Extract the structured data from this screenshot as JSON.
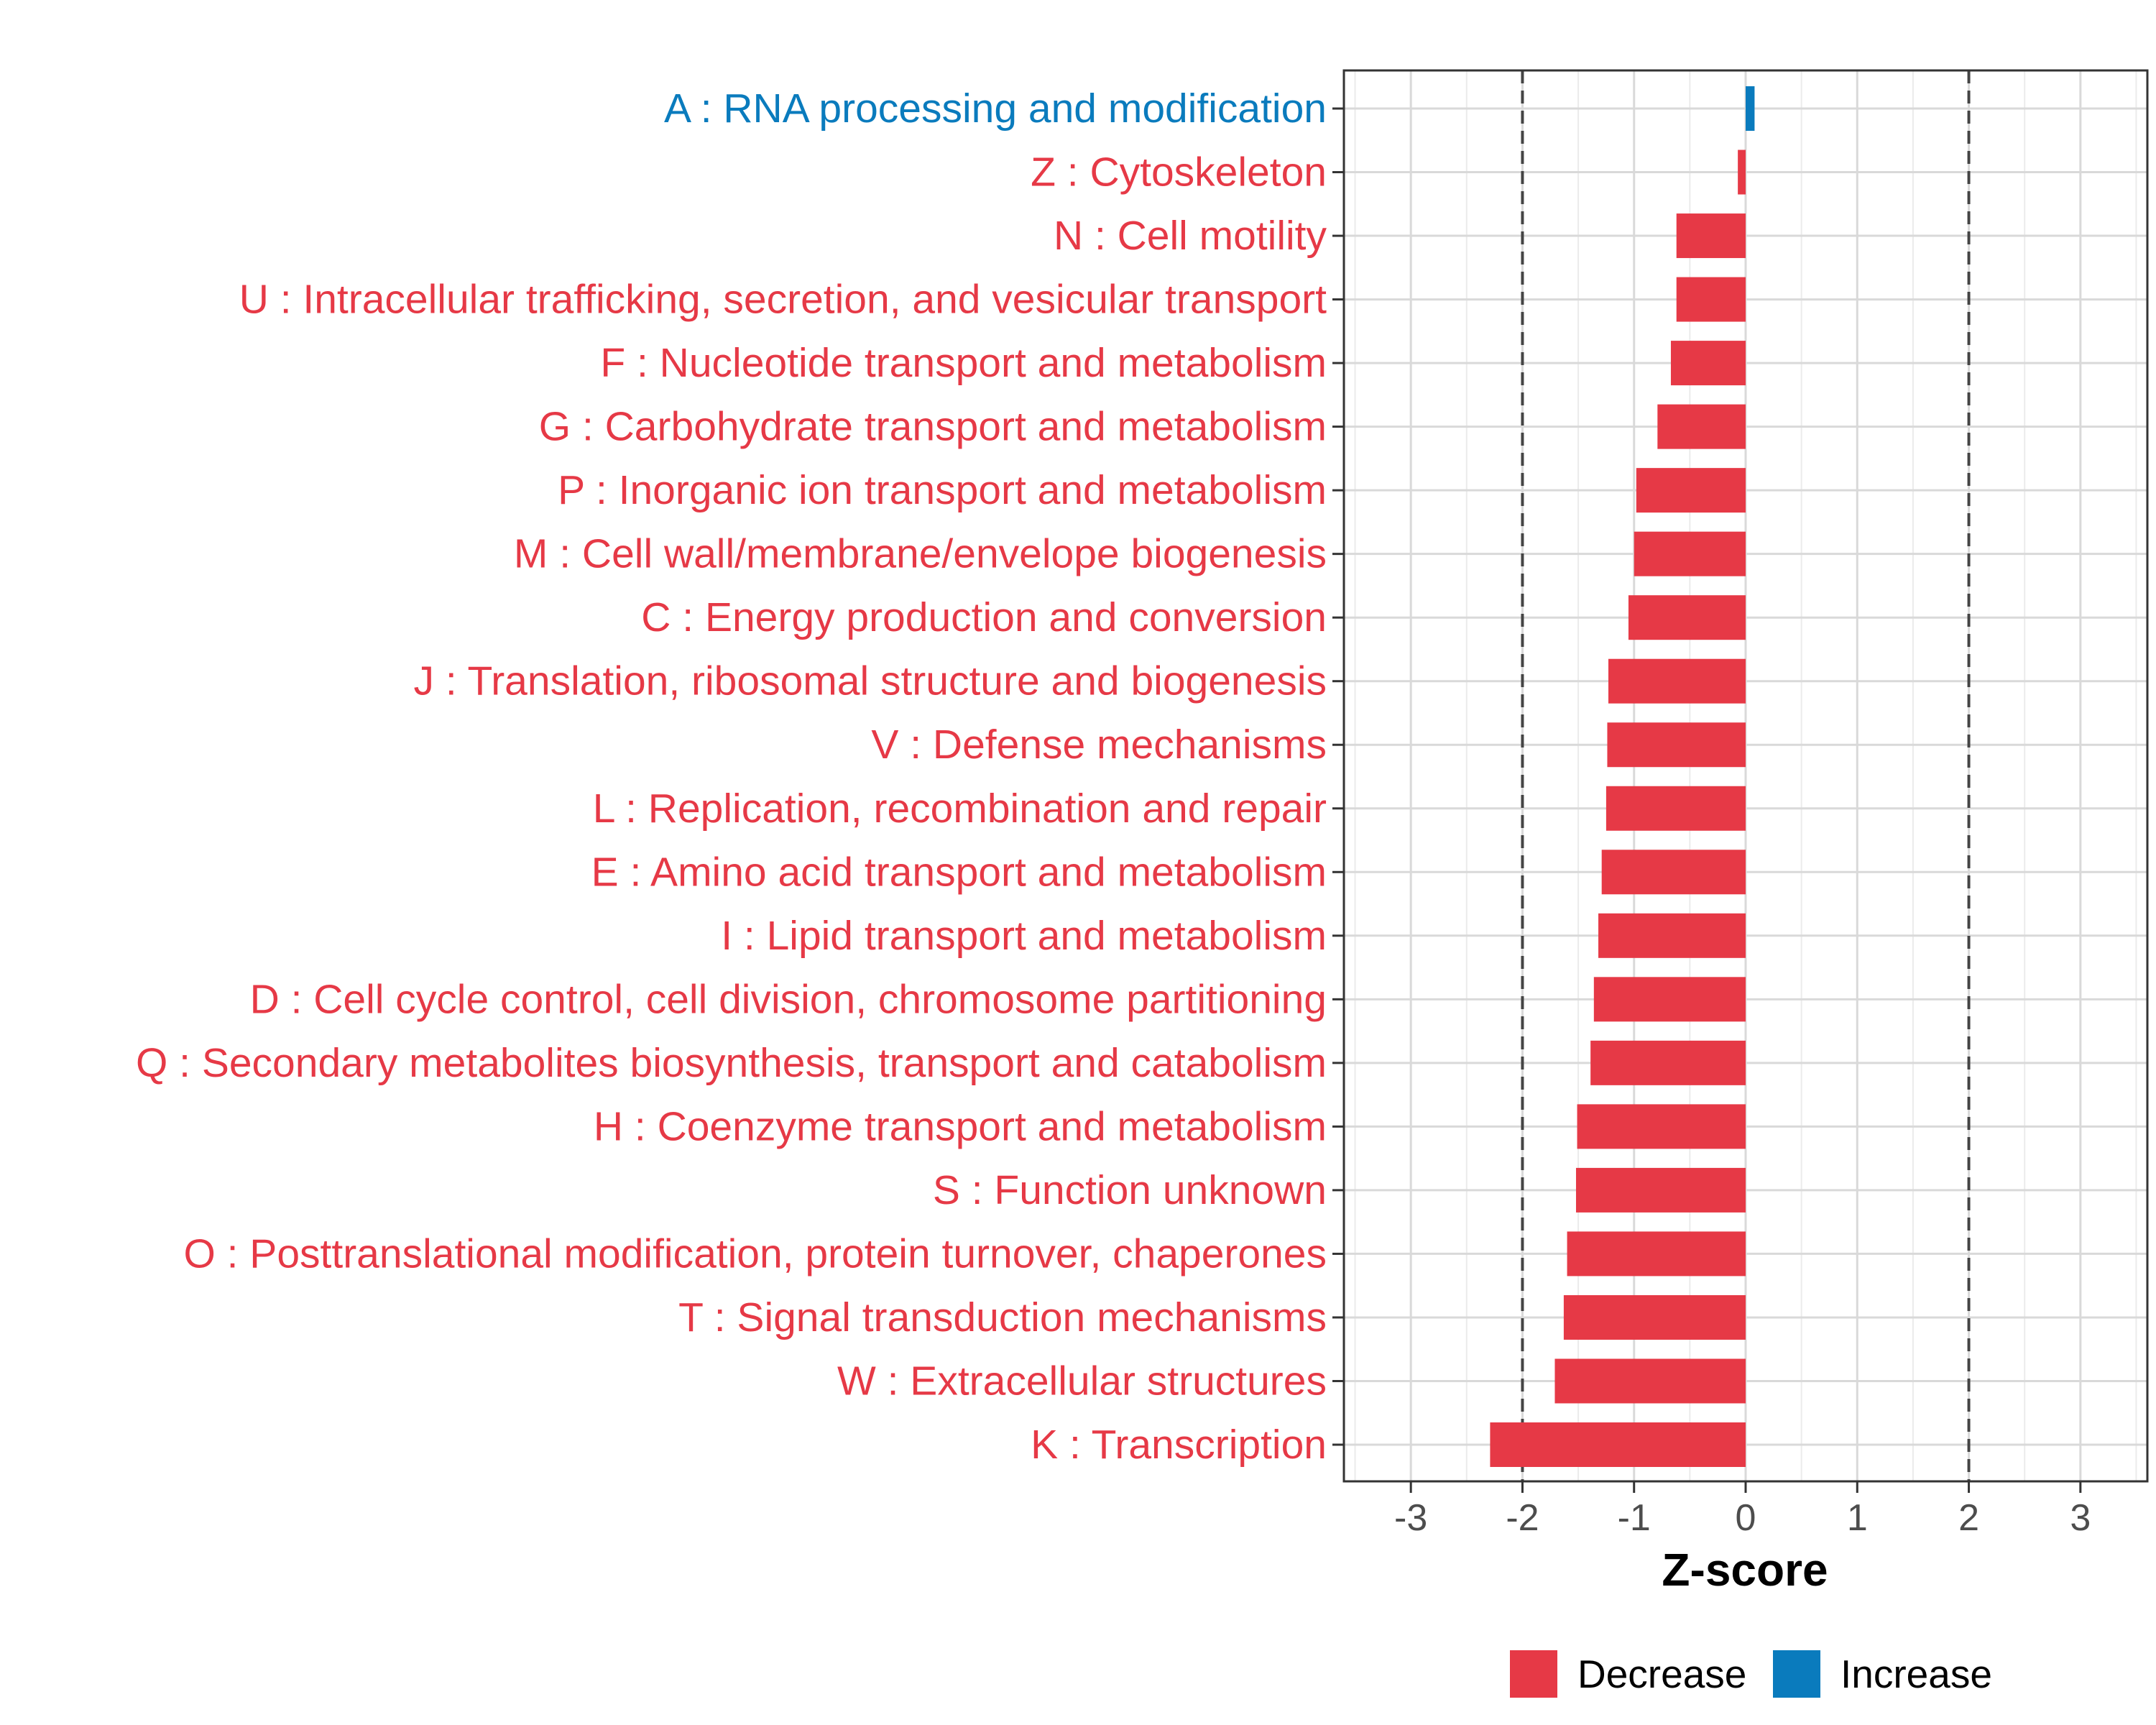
{
  "chart_data": {
    "type": "bar",
    "orientation": "horizontal",
    "xlabel": "Z-score",
    "xlim": [
      -3.6,
      3.6
    ],
    "xticks": [
      -3,
      -2,
      -1,
      0,
      1,
      2,
      3
    ],
    "xtick_labels": [
      "-3",
      "-2",
      "-1",
      "0",
      "1",
      "2",
      "3"
    ],
    "reference_lines": [
      -2,
      2
    ],
    "grid": true,
    "legend_position": "bottom",
    "colors": {
      "Decrease": "#e63946",
      "Increase": "#0a7bbd"
    },
    "legend": [
      {
        "label": "Decrease",
        "color": "#e63946"
      },
      {
        "label": "Increase",
        "color": "#0a7bbd"
      }
    ],
    "categories": [
      {
        "label": "A : RNA processing and modification",
        "value": 0.08,
        "direction": "Increase"
      },
      {
        "label": "Z : Cytoskeleton",
        "value": -0.07,
        "direction": "Decrease"
      },
      {
        "label": "N : Cell motility",
        "value": -0.62,
        "direction": "Decrease"
      },
      {
        "label": "U : Intracellular trafficking, secretion, and vesicular transport",
        "value": -0.62,
        "direction": "Decrease"
      },
      {
        "label": "F : Nucleotide transport and metabolism",
        "value": -0.67,
        "direction": "Decrease"
      },
      {
        "label": "G : Carbohydrate transport and metabolism",
        "value": -0.79,
        "direction": "Decrease"
      },
      {
        "label": "P : Inorganic ion transport and metabolism",
        "value": -0.98,
        "direction": "Decrease"
      },
      {
        "label": "M : Cell wall/membrane/envelope biogenesis",
        "value": -1.0,
        "direction": "Decrease"
      },
      {
        "label": "C : Energy production and conversion",
        "value": -1.05,
        "direction": "Decrease"
      },
      {
        "label": "J : Translation, ribosomal structure and biogenesis",
        "value": -1.23,
        "direction": "Decrease"
      },
      {
        "label": "V : Defense mechanisms",
        "value": -1.24,
        "direction": "Decrease"
      },
      {
        "label": "L : Replication, recombination and repair",
        "value": -1.25,
        "direction": "Decrease"
      },
      {
        "label": "E : Amino acid transport and metabolism",
        "value": -1.29,
        "direction": "Decrease"
      },
      {
        "label": "I : Lipid transport and metabolism",
        "value": -1.32,
        "direction": "Decrease"
      },
      {
        "label": "D : Cell cycle control, cell division, chromosome partitioning",
        "value": -1.36,
        "direction": "Decrease"
      },
      {
        "label": "Q : Secondary metabolites biosynthesis, transport and catabolism",
        "value": -1.39,
        "direction": "Decrease"
      },
      {
        "label": "H : Coenzyme transport and metabolism",
        "value": -1.51,
        "direction": "Decrease"
      },
      {
        "label": "S : Function unknown",
        "value": -1.52,
        "direction": "Decrease"
      },
      {
        "label": "O : Posttranslational modification, protein turnover, chaperones",
        "value": -1.6,
        "direction": "Decrease"
      },
      {
        "label": "T : Signal transduction mechanisms",
        "value": -1.63,
        "direction": "Decrease"
      },
      {
        "label": "W : Extracellular structures",
        "value": -1.71,
        "direction": "Decrease"
      },
      {
        "label": "K : Transcription",
        "value": -2.29,
        "direction": "Decrease"
      }
    ]
  }
}
